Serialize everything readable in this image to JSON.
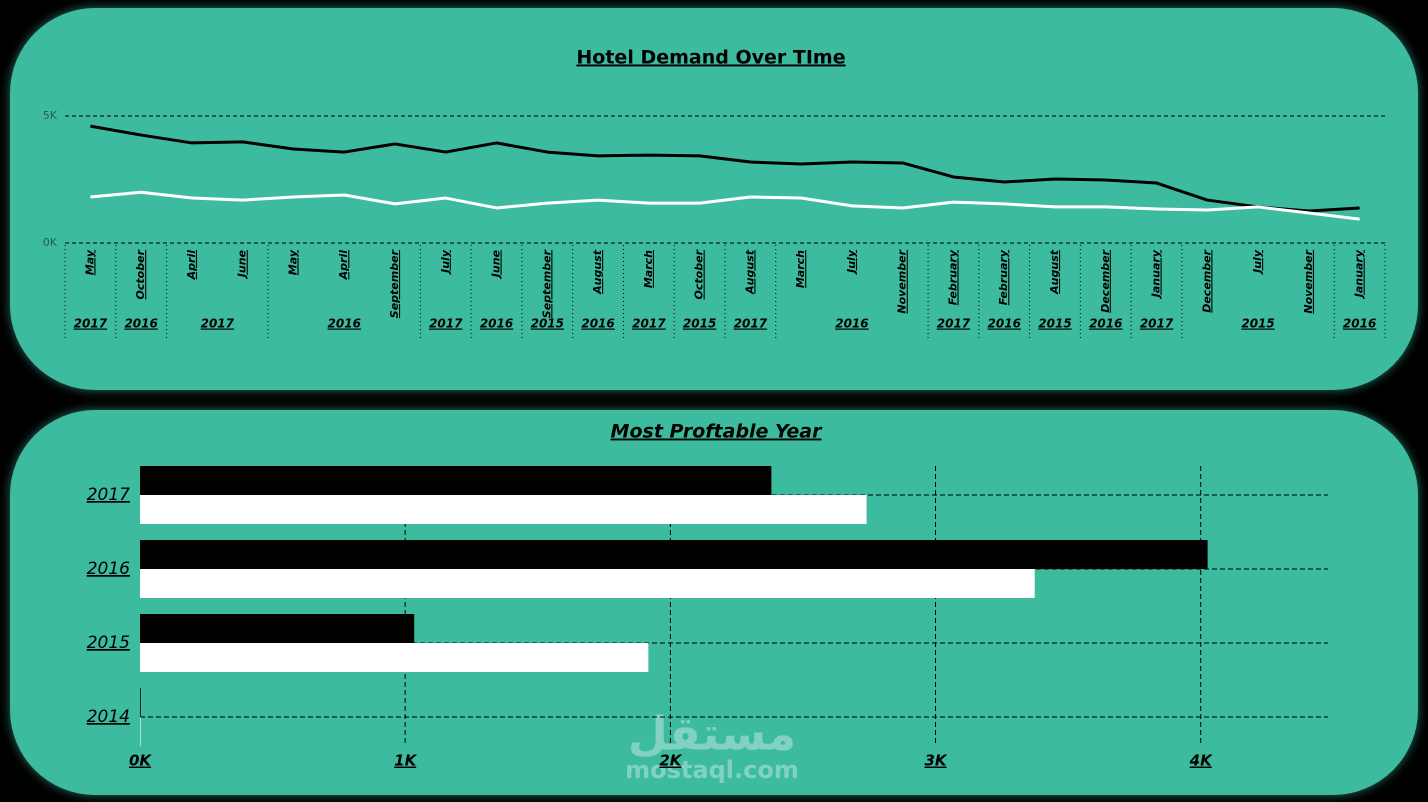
{
  "chart_data": [
    {
      "type": "line",
      "title": "Hotel Demand Over TIme",
      "categories": [
        "May",
        "October",
        "April",
        "June",
        "May",
        "April",
        "September",
        "July",
        "June",
        "September",
        "August",
        "March",
        "October",
        "August",
        "March",
        "July",
        "November",
        "February",
        "February",
        "August",
        "December",
        "January",
        "December",
        "July",
        "November",
        "January"
      ],
      "year_groups": [
        {
          "label": "2017",
          "span": 1
        },
        {
          "label": "2016",
          "span": 1
        },
        {
          "label": "2017",
          "span": 2
        },
        {
          "label": "2016",
          "span": 3
        },
        {
          "label": "2017",
          "span": 1
        },
        {
          "label": "2016",
          "span": 1
        },
        {
          "label": "2015",
          "span": 1
        },
        {
          "label": "2016",
          "span": 1
        },
        {
          "label": "2017",
          "span": 1
        },
        {
          "label": "2015",
          "span": 1
        },
        {
          "label": "2017",
          "span": 1
        },
        {
          "label": "2016",
          "span": 3
        },
        {
          "label": "2017",
          "span": 1
        },
        {
          "label": "2016",
          "span": 1
        },
        {
          "label": "2015",
          "span": 1
        },
        {
          "label": "2016",
          "span": 1
        },
        {
          "label": "2017",
          "span": 1
        },
        {
          "label": "2015",
          "span": 3
        },
        {
          "label": "2016",
          "span": 1
        }
      ],
      "series": [
        {
          "color": "#000000",
          "values": [
            4600,
            4250,
            3940,
            3980,
            3700,
            3580,
            3900,
            3580,
            3940,
            3580,
            3430,
            3460,
            3430,
            3190,
            3110,
            3190,
            3150,
            2600,
            2400,
            2520,
            2480,
            2360,
            1690,
            1420,
            1260,
            1380
          ]
        },
        {
          "color": "#ffffff",
          "values": [
            1810,
            2000,
            1770,
            1690,
            1810,
            1890,
            1540,
            1770,
            1380,
            1570,
            1690,
            1570,
            1570,
            1810,
            1770,
            1460,
            1380,
            1610,
            1540,
            1420,
            1420,
            1340,
            1300,
            1420,
            1180,
            940
          ]
        }
      ],
      "ylim": [
        0,
        5000
      ],
      "yticks": [
        {
          "value": 0,
          "label": "0K"
        },
        {
          "value": 5000,
          "label": "5K"
        }
      ],
      "grid": true
    },
    {
      "type": "hbar",
      "title": "Most Proftable Year",
      "categories": [
        "2017",
        "2016",
        "2015",
        "2014"
      ],
      "series": [
        {
          "color": "#000000",
          "values": [
            2381,
            4026,
            1034,
            3
          ]
        },
        {
          "color": "#ffffff",
          "values": [
            2740,
            3374,
            1917,
            2
          ]
        }
      ],
      "xlim": [
        0,
        4480
      ],
      "xticks": [
        {
          "value": 0,
          "label": "0K"
        },
        {
          "value": 1000,
          "label": "1K"
        },
        {
          "value": 2000,
          "label": "2K"
        },
        {
          "value": 3000,
          "label": "3K"
        },
        {
          "value": 4000,
          "label": "4K"
        }
      ],
      "grid": true
    }
  ],
  "watermark": {
    "arabic": "مستقل",
    "latin": "mostaql.com"
  }
}
